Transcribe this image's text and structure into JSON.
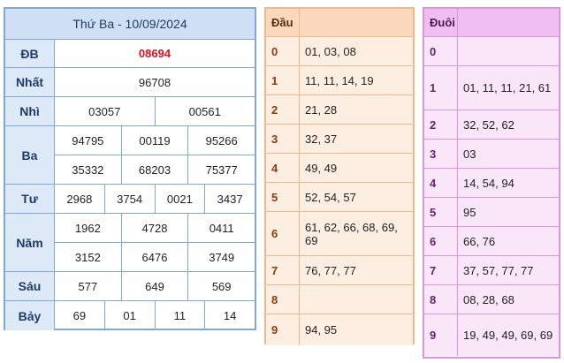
{
  "results": {
    "title": "Thứ Ba - 10/09/2024",
    "prizes": [
      {
        "label": "ĐB",
        "rows": [
          [
            "08694"
          ]
        ],
        "special": true
      },
      {
        "label": "Nhất",
        "rows": [
          [
            "96708"
          ]
        ]
      },
      {
        "label": "Nhì",
        "rows": [
          [
            "03057",
            "00561"
          ]
        ]
      },
      {
        "label": "Ba",
        "rows": [
          [
            "94795",
            "00119",
            "95266"
          ],
          [
            "35332",
            "68203",
            "75377"
          ]
        ]
      },
      {
        "label": "Tư",
        "rows": [
          [
            "2968",
            "3754",
            "0021",
            "3437"
          ]
        ]
      },
      {
        "label": "Năm",
        "rows": [
          [
            "1962",
            "4728",
            "0411"
          ],
          [
            "3152",
            "6476",
            "3749"
          ]
        ]
      },
      {
        "label": "Sáu",
        "rows": [
          [
            "577",
            "649",
            "569"
          ]
        ]
      },
      {
        "label": "Bảy",
        "rows": [
          [
            "69",
            "01",
            "11",
            "14"
          ]
        ]
      }
    ]
  },
  "dau": {
    "header": "Đầu",
    "rows": [
      {
        "key": "0",
        "value": "01, 03, 08"
      },
      {
        "key": "1",
        "value": "11, 11, 14, 19"
      },
      {
        "key": "2",
        "value": "21, 28"
      },
      {
        "key": "3",
        "value": "32, 37"
      },
      {
        "key": "4",
        "value": "49, 49"
      },
      {
        "key": "5",
        "value": "52, 54, 57"
      },
      {
        "key": "6",
        "value": "61, 62, 66, 68, 69, 69"
      },
      {
        "key": "7",
        "value": "76, 77, 77"
      },
      {
        "key": "8",
        "value": ""
      },
      {
        "key": "9",
        "value": "94, 95"
      }
    ]
  },
  "duoi": {
    "header": "Đuôi",
    "rows": [
      {
        "key": "0",
        "value": ""
      },
      {
        "key": "1",
        "value": "01, 11, 11, 21, 61"
      },
      {
        "key": "2",
        "value": "32, 52, 62"
      },
      {
        "key": "3",
        "value": "03"
      },
      {
        "key": "4",
        "value": "14, 54, 94"
      },
      {
        "key": "5",
        "value": "95"
      },
      {
        "key": "6",
        "value": "66, 76"
      },
      {
        "key": "7",
        "value": "37, 57, 77, 77"
      },
      {
        "key": "8",
        "value": "08, 28, 68"
      },
      {
        "key": "9",
        "value": "19, 49, 49, 69, 69"
      }
    ]
  }
}
